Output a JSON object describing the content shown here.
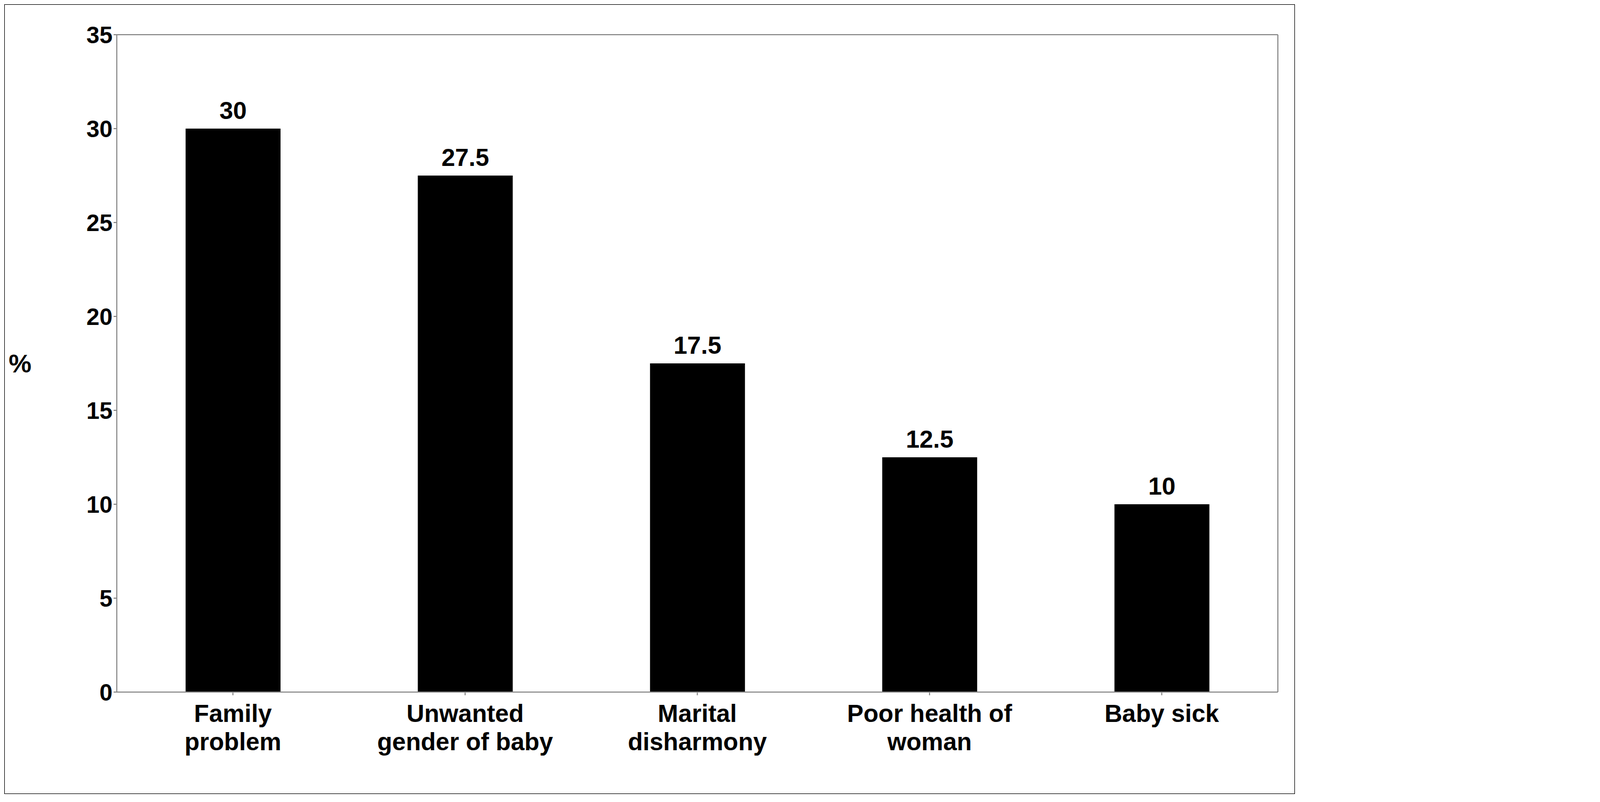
{
  "chart_data": {
    "type": "bar",
    "y_label": "%",
    "categories": [
      "Family problem",
      "Unwanted gender of baby",
      "Marital disharmony",
      "Poor health of woman",
      "Baby sick"
    ],
    "values": [
      30,
      27.5,
      17.5,
      12.5,
      10
    ],
    "color": "#000000",
    "ylim": [
      0,
      35
    ],
    "yticks": [
      0,
      5,
      10,
      15,
      20,
      25,
      30,
      35
    ],
    "grid": false,
    "data_labels": true
  }
}
